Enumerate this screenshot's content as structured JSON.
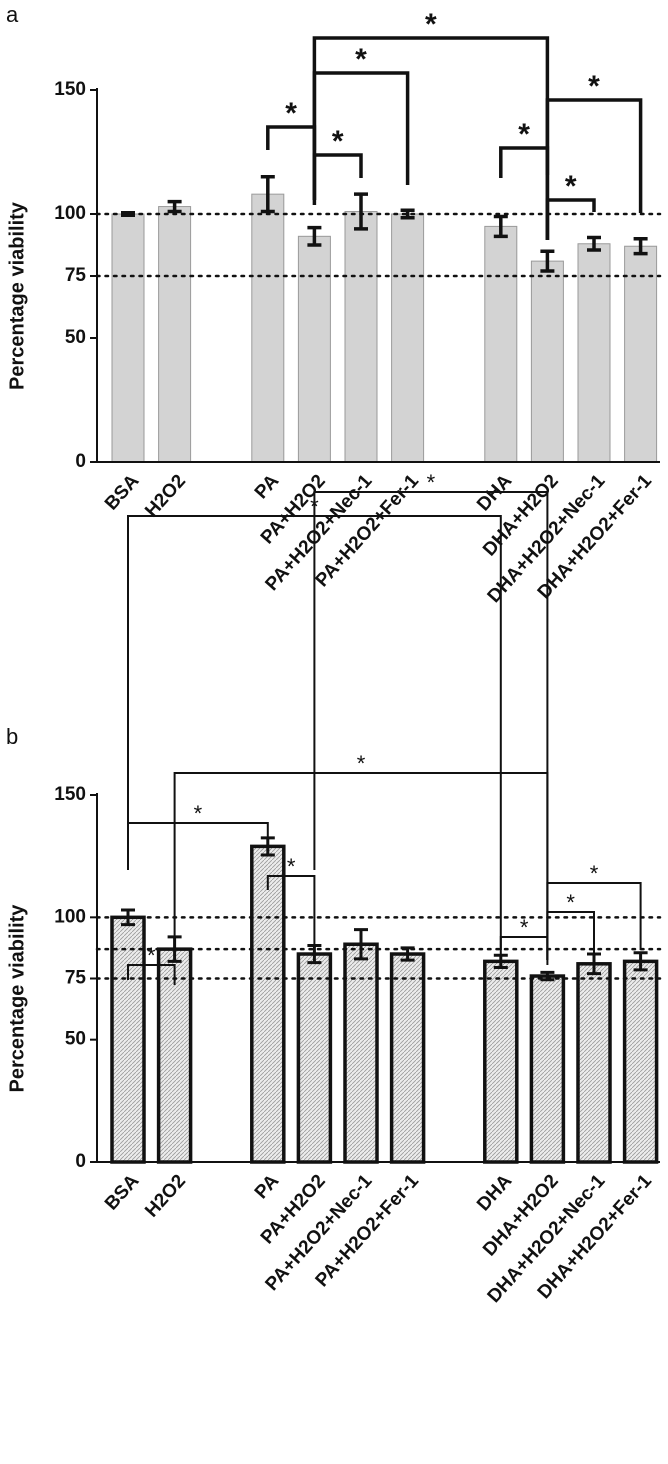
{
  "chart_data": [
    {
      "type": "bar",
      "panel_label": "a",
      "ylabel": "Percentage viability",
      "categories": [
        "BSA",
        "H2O2",
        null,
        "PA",
        "PA+H2O2",
        "PA+H2O2+Nec-1",
        "PA+H2O2+Fer-1",
        null,
        "DHA",
        "DHA+H2O2",
        "DHA+H2O2+Nec-1",
        "DHA+H2O2+Fer-1"
      ],
      "values": [
        100,
        103,
        null,
        108,
        91,
        101,
        100,
        null,
        95,
        81,
        88,
        87
      ],
      "errors": [
        0.5,
        2,
        null,
        7,
        3.5,
        7,
        1.5,
        null,
        4,
        4,
        2.5,
        3
      ],
      "ylim": [
        0,
        150
      ],
      "yticks": [
        0,
        50,
        75,
        100,
        150
      ],
      "reference_lines": [
        100,
        75
      ],
      "color": "#d3d3d3",
      "hatch": false,
      "brackets": [
        {
          "from": 3,
          "to": 4,
          "label": "*"
        },
        {
          "from": 4,
          "to": 5,
          "label": "*"
        },
        {
          "from": 4,
          "to": 6,
          "label": "*"
        },
        {
          "from": 4,
          "to": 9,
          "label": "*"
        },
        {
          "from": 8,
          "to": 9,
          "label": "*"
        },
        {
          "from": 9,
          "to": 10,
          "label": "*"
        },
        {
          "from": 9,
          "to": 11,
          "label": "*"
        }
      ]
    },
    {
      "type": "bar",
      "panel_label": "b",
      "ylabel": "Percentage viability",
      "categories": [
        "BSA",
        "H2O2",
        null,
        "PA",
        "PA+H2O2",
        "PA+H2O2+Nec-1",
        "PA+H2O2+Fer-1",
        null,
        "DHA",
        "DHA+H2O2",
        "DHA+H2O2+Nec-1",
        "DHA+H2O2+Fer-1"
      ],
      "values": [
        100,
        87,
        null,
        129,
        85,
        89,
        85,
        null,
        82,
        76,
        81,
        82
      ],
      "errors": [
        3,
        5,
        null,
        3.5,
        3.5,
        6,
        2.5,
        null,
        2.5,
        1.5,
        4,
        3.5
      ],
      "ylim": [
        0,
        150
      ],
      "yticks": [
        0,
        50,
        75,
        100,
        150
      ],
      "reference_lines": [
        100,
        87,
        75
      ],
      "color": "#e6e6e6",
      "hatch": true,
      "brackets": [
        {
          "from": 0,
          "to": 1,
          "label": "*"
        },
        {
          "from": 0,
          "to": 3,
          "label": "*"
        },
        {
          "from": 3,
          "to": 4,
          "label": "*"
        },
        {
          "from": 1,
          "to": 9,
          "label": "*"
        },
        {
          "from": 4,
          "to": 9,
          "label": "*"
        },
        {
          "from": 0,
          "to": 8,
          "label": "*"
        },
        {
          "from": 8,
          "to": 9,
          "label": "*"
        },
        {
          "from": 9,
          "to": 10,
          "label": "*"
        },
        {
          "from": 9,
          "to": 11,
          "label": "*"
        }
      ]
    }
  ]
}
